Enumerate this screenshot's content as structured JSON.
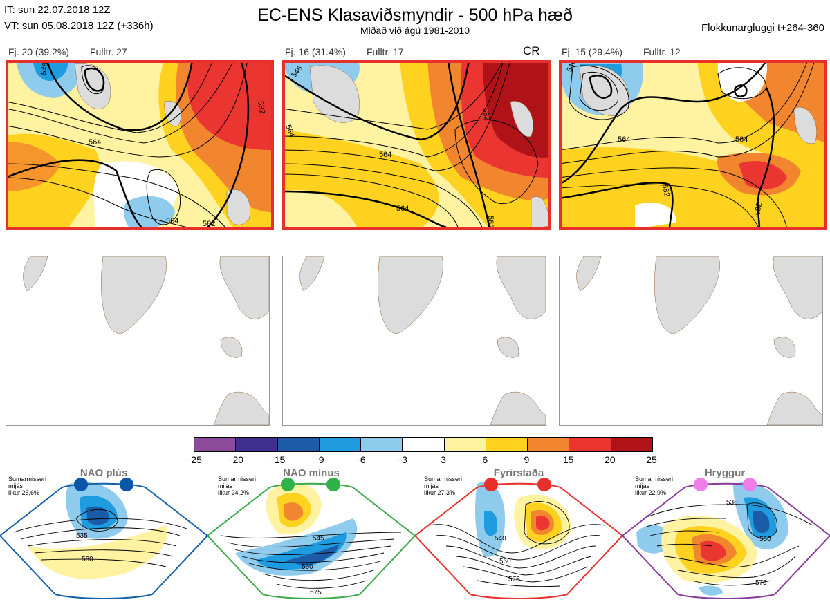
{
  "header": {
    "it_line": "IT: sun 22.07.2018 12Z",
    "vt_line": "VT: sun 05.08.2018 12Z  (+336h)",
    "title": "EC-ENS Klasaviðsmyndir - 500 hPa hæð",
    "subtitle": "Miðað við ágú 1981-2010",
    "window": "Flokkunargluggi t+264-360"
  },
  "clusters": [
    {
      "label": "Fj. 20 (39.2%)",
      "rep": "Fulltr. 27",
      "tag": "",
      "contours": [
        "564",
        "546",
        "582",
        "564",
        "582"
      ],
      "frame_color": "#e8302a"
    },
    {
      "label": "Fj. 16 (31.4%)",
      "rep": "Fulltr. 17",
      "tag": "CR",
      "contours": [
        "546",
        "564",
        "582",
        "564",
        "582",
        "564"
      ],
      "frame_color": "#e8302a"
    },
    {
      "label": "Fj. 15 (29.4%)",
      "rep": "Fulltr. 12",
      "tag": "",
      "contours": [
        "546",
        "564",
        "564",
        "582",
        "582"
      ],
      "frame_color": "#e8302a"
    }
  ],
  "colorbar": {
    "labels": [
      "−25",
      "−20",
      "−15",
      "−9",
      "−6",
      "−3",
      "3",
      "6",
      "9",
      "15",
      "20",
      "25"
    ],
    "colors": [
      "#8b4a9a",
      "#3f2f8f",
      "#1c5ba8",
      "#1f9be0",
      "#8ecbed",
      "#ffffff",
      "#fff2a0",
      "#ffd21f",
      "#f2862e",
      "#ea3530",
      "#b01317"
    ]
  },
  "regimes": [
    {
      "name": "NAO plús",
      "season": "Sumarmisseri",
      "avg": "mijás",
      "freq": "líkur 25,6%",
      "dot_color": "#0a56a8",
      "frame_color": "#1460a8",
      "contours": [
        "535",
        "560"
      ]
    },
    {
      "name": "NAO mínus",
      "season": "Sumarmisseri",
      "avg": "mijás",
      "freq": "líkur 24,2%",
      "dot_color": "#2fb24a",
      "frame_color": "#3aaa48",
      "contours": [
        "545",
        "560",
        "575"
      ]
    },
    {
      "name": "Fyrirstaða",
      "season": "Sumarmisseri",
      "avg": "mijás",
      "freq": "líkur 27,3%",
      "dot_color": "#e8302a",
      "frame_color": "#e8302a",
      "contours": [
        "540",
        "560",
        "575"
      ]
    },
    {
      "name": "Hryggur",
      "season": "Sumarmisseri",
      "avg": "mijás",
      "freq": "líkur 22,9%",
      "dot_color": "#ee7fe8",
      "frame_color": "#8a3a9a",
      "contours": [
        "530",
        "550",
        "575"
      ]
    }
  ]
}
